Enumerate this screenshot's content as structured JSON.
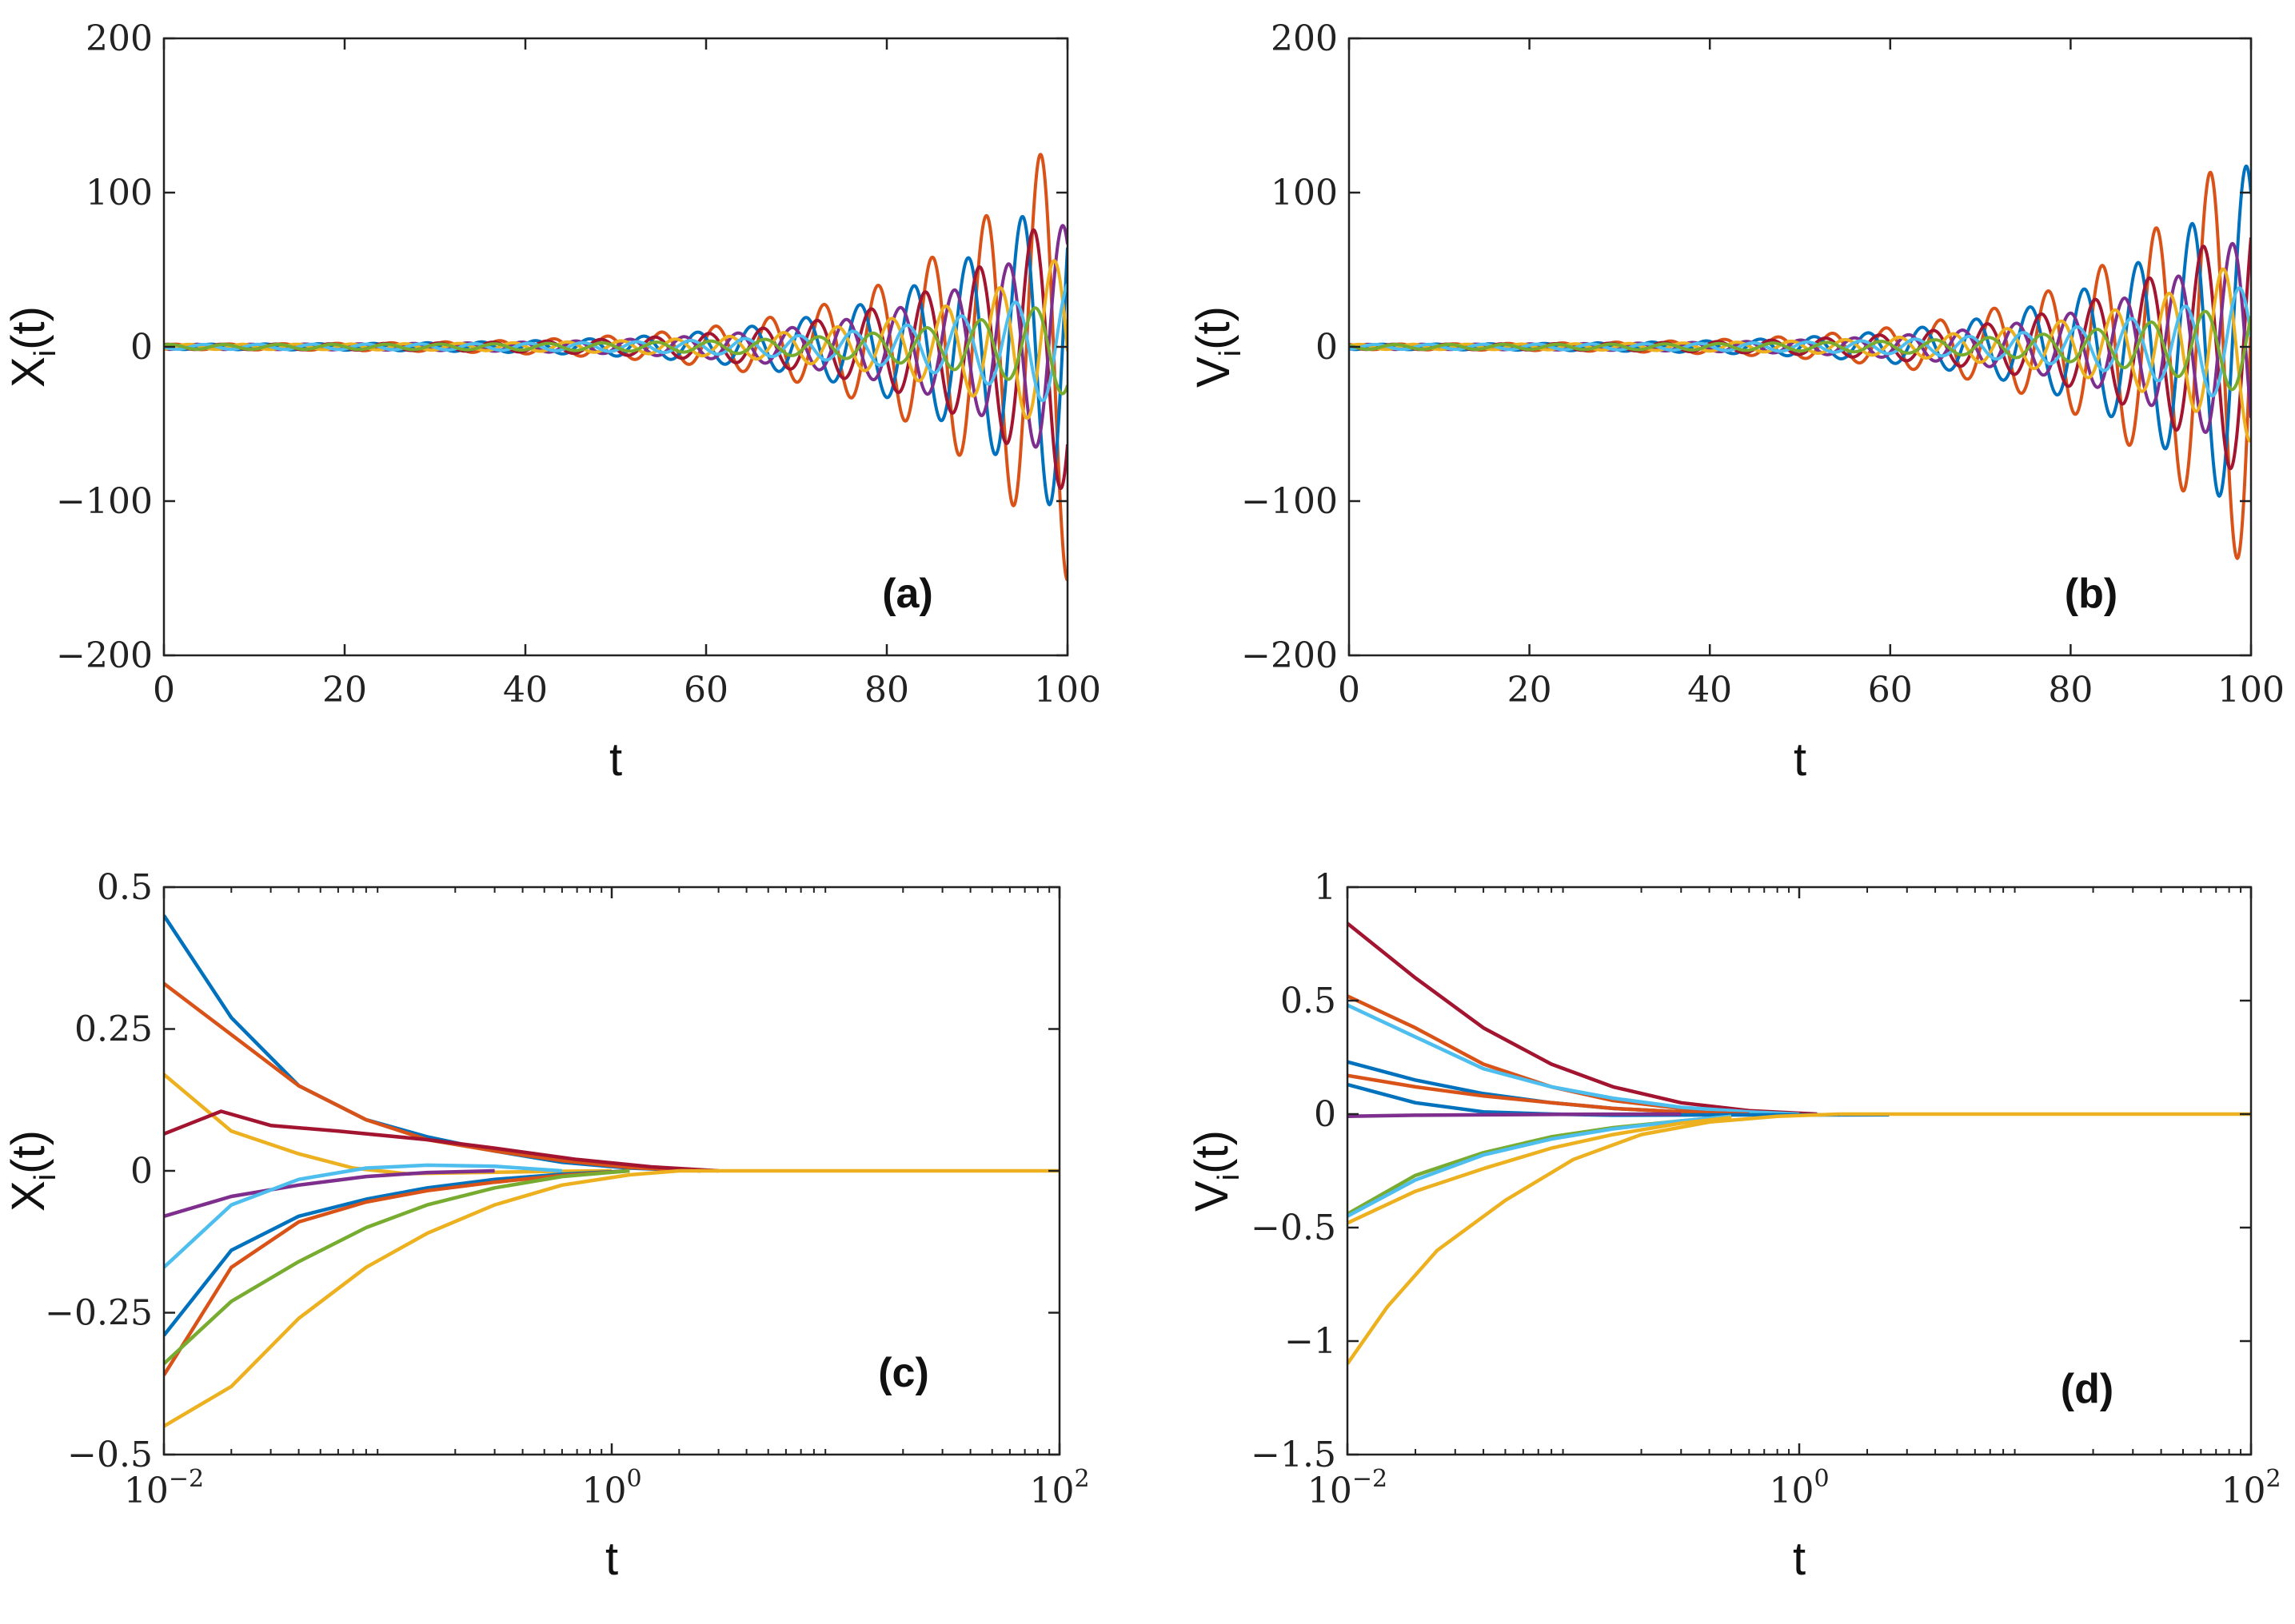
{
  "colors": {
    "blue": "#0072BD",
    "orange": "#D95319",
    "yellow": "#EDB120",
    "purple": "#7E2F8E",
    "green": "#77AC30",
    "cyan": "#4DBEEE",
    "darkred": "#A2142F"
  },
  "chart_data": [
    {
      "id": "a",
      "type": "line",
      "panel_label": "(a)",
      "xlabel": "t",
      "ylabel": "X",
      "ylabel_sub": "i",
      "ylabel_suffix": "(t)",
      "xscale": "linear",
      "xlim": [
        0,
        100
      ],
      "ylim": [
        -200,
        200
      ],
      "xticks": [
        0,
        20,
        40,
        60,
        80,
        100
      ],
      "yticks": [
        -200,
        -100,
        0,
        100,
        200
      ],
      "xtick_labels": [
        "0",
        "20",
        "40",
        "60",
        "80",
        "100"
      ],
      "ytick_labels": [
        "−200",
        "−100",
        "0",
        "100",
        "200"
      ],
      "legend": "none",
      "grid": false,
      "series": [
        {
          "color": "orange",
          "amplitude_at_end": 150,
          "envelope_growth": 0.065,
          "omega": 1.05,
          "phase": 0.3
        },
        {
          "color": "blue",
          "amplitude_at_end": 115,
          "envelope_growth": 0.065,
          "omega": 1.05,
          "phase": 2.4
        },
        {
          "color": "darkred",
          "amplitude_at_end": 95,
          "envelope_growth": 0.065,
          "omega": 1.05,
          "phase": 1.1
        },
        {
          "color": "purple",
          "amplitude_at_end": 80,
          "envelope_growth": 0.065,
          "omega": 1.05,
          "phase": 4.0
        },
        {
          "color": "yellow",
          "amplitude_at_end": 60,
          "envelope_growth": 0.065,
          "omega": 1.05,
          "phase": 5.0
        },
        {
          "color": "cyan",
          "amplitude_at_end": 40,
          "envelope_growth": 0.065,
          "omega": 1.05,
          "phase": 3.2
        },
        {
          "color": "green",
          "amplitude_at_end": 30,
          "envelope_growth": 0.065,
          "omega": 1.05,
          "phase": 0.9
        }
      ]
    },
    {
      "id": "b",
      "type": "line",
      "panel_label": "(b)",
      "xlabel": "t",
      "ylabel": "V",
      "ylabel_sub": "i",
      "ylabel_suffix": "(t)",
      "xscale": "linear",
      "xlim": [
        0,
        100
      ],
      "ylim": [
        -200,
        200
      ],
      "xticks": [
        0,
        20,
        40,
        60,
        80,
        100
      ],
      "yticks": [
        -200,
        -100,
        0,
        100,
        200
      ],
      "xtick_labels": [
        "0",
        "20",
        "40",
        "60",
        "80",
        "100"
      ],
      "ytick_labels": [
        "−200",
        "−100",
        "0",
        "100",
        "200"
      ],
      "legend": "none",
      "grid": false,
      "series": [
        {
          "color": "orange",
          "amplitude_at_end": 150,
          "envelope_growth": 0.065,
          "omega": 1.05,
          "phase": 1.9
        },
        {
          "color": "blue",
          "amplitude_at_end": 120,
          "envelope_growth": 0.065,
          "omega": 1.05,
          "phase": 4.0
        },
        {
          "color": "darkred",
          "amplitude_at_end": 90,
          "envelope_growth": 0.065,
          "omega": 1.05,
          "phase": 2.7
        },
        {
          "color": "purple",
          "amplitude_at_end": 75,
          "envelope_growth": 0.065,
          "omega": 1.05,
          "phase": 5.6
        },
        {
          "color": "yellow",
          "amplitude_at_end": 60,
          "envelope_growth": 0.065,
          "omega": 1.05,
          "phase": 0.4
        },
        {
          "color": "cyan",
          "amplitude_at_end": 40,
          "envelope_growth": 0.065,
          "omega": 1.05,
          "phase": 4.8
        },
        {
          "color": "green",
          "amplitude_at_end": 30,
          "envelope_growth": 0.065,
          "omega": 1.05,
          "phase": 2.5
        }
      ]
    },
    {
      "id": "c",
      "type": "line",
      "panel_label": "(c)",
      "xlabel": "t",
      "ylabel": "X",
      "ylabel_sub": "i",
      "ylabel_suffix": "(t)",
      "xscale": "log",
      "xlim": [
        0.01,
        100
      ],
      "ylim": [
        -0.5,
        0.5
      ],
      "xticks": [
        0.01,
        1,
        100
      ],
      "yticks": [
        -0.5,
        -0.25,
        0,
        0.25,
        0.5
      ],
      "xtick_labels": [
        [
          "10",
          "−2"
        ],
        [
          "10",
          "0"
        ],
        [
          "10",
          "2"
        ]
      ],
      "ytick_labels": [
        "−0.5",
        "−0.25",
        "0",
        "0.25",
        "0.5"
      ],
      "legend": "none",
      "grid": false,
      "series": [
        {
          "color": "blue",
          "x": [
            0.01,
            0.02,
            0.04,
            0.08,
            0.15,
            0.3,
            0.6,
            1.2,
            2.5
          ],
          "y": [
            0.45,
            0.27,
            0.15,
            0.09,
            0.06,
            0.035,
            0.015,
            0.005,
            0.0
          ]
        },
        {
          "color": "orange",
          "x": [
            0.01,
            0.02,
            0.04,
            0.08,
            0.15,
            0.3,
            0.6,
            1.2,
            2.5
          ],
          "y": [
            0.33,
            0.24,
            0.15,
            0.09,
            0.055,
            0.035,
            0.018,
            0.006,
            0.0
          ]
        },
        {
          "color": "yellow",
          "x": [
            0.01,
            0.02,
            0.04,
            0.07,
            0.12,
            0.25,
            0.5,
            1.0
          ],
          "y": [
            0.17,
            0.07,
            0.03,
            0.005,
            -0.005,
            -0.003,
            -0.001,
            0.0
          ]
        },
        {
          "color": "darkred",
          "x": [
            0.01,
            0.018,
            0.03,
            0.06,
            0.15,
            0.3,
            0.7,
            1.5,
            3.0
          ],
          "y": [
            0.065,
            0.105,
            0.08,
            0.07,
            0.055,
            0.04,
            0.02,
            0.007,
            0.0
          ]
        },
        {
          "color": "purple",
          "x": [
            0.01,
            0.02,
            0.04,
            0.08,
            0.15,
            0.3
          ],
          "y": [
            -0.08,
            -0.045,
            -0.025,
            -0.01,
            -0.003,
            0.0
          ]
        },
        {
          "color": "cyan",
          "x": [
            0.01,
            0.02,
            0.04,
            0.08,
            0.15,
            0.3,
            0.6
          ],
          "y": [
            -0.17,
            -0.06,
            -0.015,
            0.005,
            0.01,
            0.008,
            0.0
          ]
        },
        {
          "color": "blue",
          "x": [
            0.01,
            0.02,
            0.04,
            0.08,
            0.15,
            0.3,
            0.6,
            1.2
          ],
          "y": [
            -0.29,
            -0.14,
            -0.08,
            -0.05,
            -0.03,
            -0.015,
            -0.006,
            0.0
          ]
        },
        {
          "color": "orange",
          "x": [
            0.01,
            0.02,
            0.04,
            0.08,
            0.15,
            0.3,
            0.6,
            1.2
          ],
          "y": [
            -0.36,
            -0.17,
            -0.09,
            -0.055,
            -0.035,
            -0.02,
            -0.008,
            0.0
          ]
        },
        {
          "color": "green",
          "x": [
            0.01,
            0.02,
            0.04,
            0.08,
            0.15,
            0.3,
            0.6,
            1.2
          ],
          "y": [
            -0.34,
            -0.23,
            -0.16,
            -0.1,
            -0.06,
            -0.03,
            -0.01,
            0.0
          ]
        },
        {
          "color": "yellow",
          "x": [
            0.01,
            0.02,
            0.04,
            0.08,
            0.15,
            0.3,
            0.6,
            1.2,
            2.0
          ],
          "y": [
            -0.45,
            -0.38,
            -0.26,
            -0.17,
            -0.11,
            -0.06,
            -0.025,
            -0.007,
            0.0
          ]
        },
        {
          "color": "yellow",
          "x": [
            2.0,
            100
          ],
          "y": [
            0.0,
            0.0
          ]
        }
      ]
    },
    {
      "id": "d",
      "type": "line",
      "panel_label": "(d)",
      "xlabel": "t",
      "ylabel": "V",
      "ylabel_sub": "i",
      "ylabel_suffix": "(t)",
      "xscale": "log",
      "xlim": [
        0.01,
        100
      ],
      "ylim": [
        -1.5,
        1
      ],
      "xticks": [
        0.01,
        1,
        100
      ],
      "yticks": [
        -1.5,
        -1,
        -0.5,
        0,
        0.5,
        1
      ],
      "xtick_labels": [
        [
          "10",
          "−2"
        ],
        [
          "10",
          "0"
        ],
        [
          "10",
          "2"
        ]
      ],
      "ytick_labels": [
        "−1.5",
        "−1",
        "−0.5",
        "0",
        "0.5",
        "1"
      ],
      "legend": "none",
      "grid": false,
      "series": [
        {
          "color": "darkred",
          "x": [
            0.01,
            0.02,
            0.04,
            0.08,
            0.15,
            0.3,
            0.6,
            1.2
          ],
          "y": [
            0.84,
            0.6,
            0.38,
            0.22,
            0.12,
            0.05,
            0.015,
            0.0
          ]
        },
        {
          "color": "orange",
          "x": [
            0.01,
            0.02,
            0.04,
            0.08,
            0.15,
            0.3,
            0.6,
            1.0
          ],
          "y": [
            0.52,
            0.38,
            0.22,
            0.12,
            0.06,
            0.025,
            0.008,
            0.0
          ]
        },
        {
          "color": "cyan",
          "x": [
            0.01,
            0.02,
            0.04,
            0.08,
            0.15,
            0.3,
            0.6,
            1.0
          ],
          "y": [
            0.48,
            0.34,
            0.2,
            0.12,
            0.07,
            0.03,
            0.01,
            0.0
          ]
        },
        {
          "color": "blue",
          "x": [
            0.01,
            0.02,
            0.04,
            0.08,
            0.15,
            0.3,
            0.6
          ],
          "y": [
            0.23,
            0.15,
            0.09,
            0.05,
            0.025,
            0.01,
            0.0
          ]
        },
        {
          "color": "orange",
          "x": [
            0.01,
            0.02,
            0.04,
            0.08,
            0.15,
            0.3,
            0.6
          ],
          "y": [
            0.17,
            0.12,
            0.08,
            0.05,
            0.025,
            0.01,
            0.0
          ]
        },
        {
          "color": "blue",
          "x": [
            0.01,
            0.02,
            0.04,
            0.08,
            0.15,
            0.3,
            2.5
          ],
          "y": [
            0.13,
            0.05,
            0.01,
            0.0,
            -0.005,
            -0.004,
            -0.003
          ]
        },
        {
          "color": "purple",
          "x": [
            0.01,
            0.02,
            0.04,
            0.1,
            0.3
          ],
          "y": [
            -0.01,
            -0.005,
            -0.003,
            -0.001,
            0.0
          ]
        },
        {
          "color": "green",
          "x": [
            0.01,
            0.02,
            0.04,
            0.08,
            0.15,
            0.3,
            0.5
          ],
          "y": [
            -0.44,
            -0.27,
            -0.17,
            -0.1,
            -0.06,
            -0.03,
            -0.01
          ]
        },
        {
          "color": "cyan",
          "x": [
            0.01,
            0.02,
            0.04,
            0.08,
            0.15,
            0.3,
            0.5
          ],
          "y": [
            -0.45,
            -0.29,
            -0.18,
            -0.11,
            -0.065,
            -0.03,
            -0.01
          ]
        },
        {
          "color": "yellow",
          "x": [
            0.01,
            0.02,
            0.04,
            0.08,
            0.15,
            0.3,
            0.5
          ],
          "y": [
            -0.48,
            -0.34,
            -0.24,
            -0.15,
            -0.09,
            -0.04,
            -0.015
          ]
        },
        {
          "color": "yellow",
          "x": [
            0.01,
            0.015,
            0.025,
            0.05,
            0.1,
            0.2,
            0.4,
            0.8,
            1.5
          ],
          "y": [
            -1.1,
            -0.85,
            -0.6,
            -0.38,
            -0.2,
            -0.09,
            -0.035,
            -0.01,
            0.0
          ]
        },
        {
          "color": "yellow",
          "x": [
            1.5,
            100
          ],
          "y": [
            0.0,
            0.0
          ]
        }
      ]
    }
  ]
}
